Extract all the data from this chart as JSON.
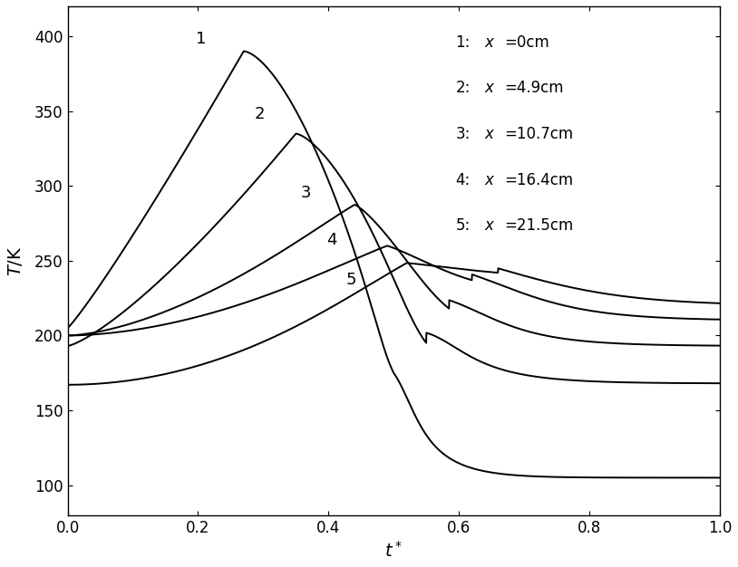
{
  "title": "",
  "xlabel": "t*",
  "ylabel": "T/K",
  "xlim": [
    0.0,
    1.0
  ],
  "ylim": [
    80,
    420
  ],
  "yticks": [
    100,
    150,
    200,
    250,
    300,
    350,
    400
  ],
  "xticks": [
    0.0,
    0.2,
    0.4,
    0.6,
    0.8,
    1.0
  ],
  "legend_entries": [
    [
      "1:",
      "x",
      "=0cm"
    ],
    [
      "2:",
      "x",
      "=4.9cm"
    ],
    [
      "3:",
      "x",
      "=10.7cm"
    ],
    [
      "4:",
      "x",
      "=16.4cm"
    ],
    [
      "5:",
      "x",
      "=21.5cm"
    ]
  ],
  "curve_labels": [
    [
      0.205,
      398,
      "1"
    ],
    [
      0.295,
      348,
      "2"
    ],
    [
      0.365,
      295,
      "3"
    ],
    [
      0.405,
      264,
      "4"
    ],
    [
      0.435,
      237,
      "5"
    ]
  ],
  "line_color": "black",
  "background_color": "white",
  "figsize": [
    8.14,
    6.26
  ],
  "dpi": 100
}
